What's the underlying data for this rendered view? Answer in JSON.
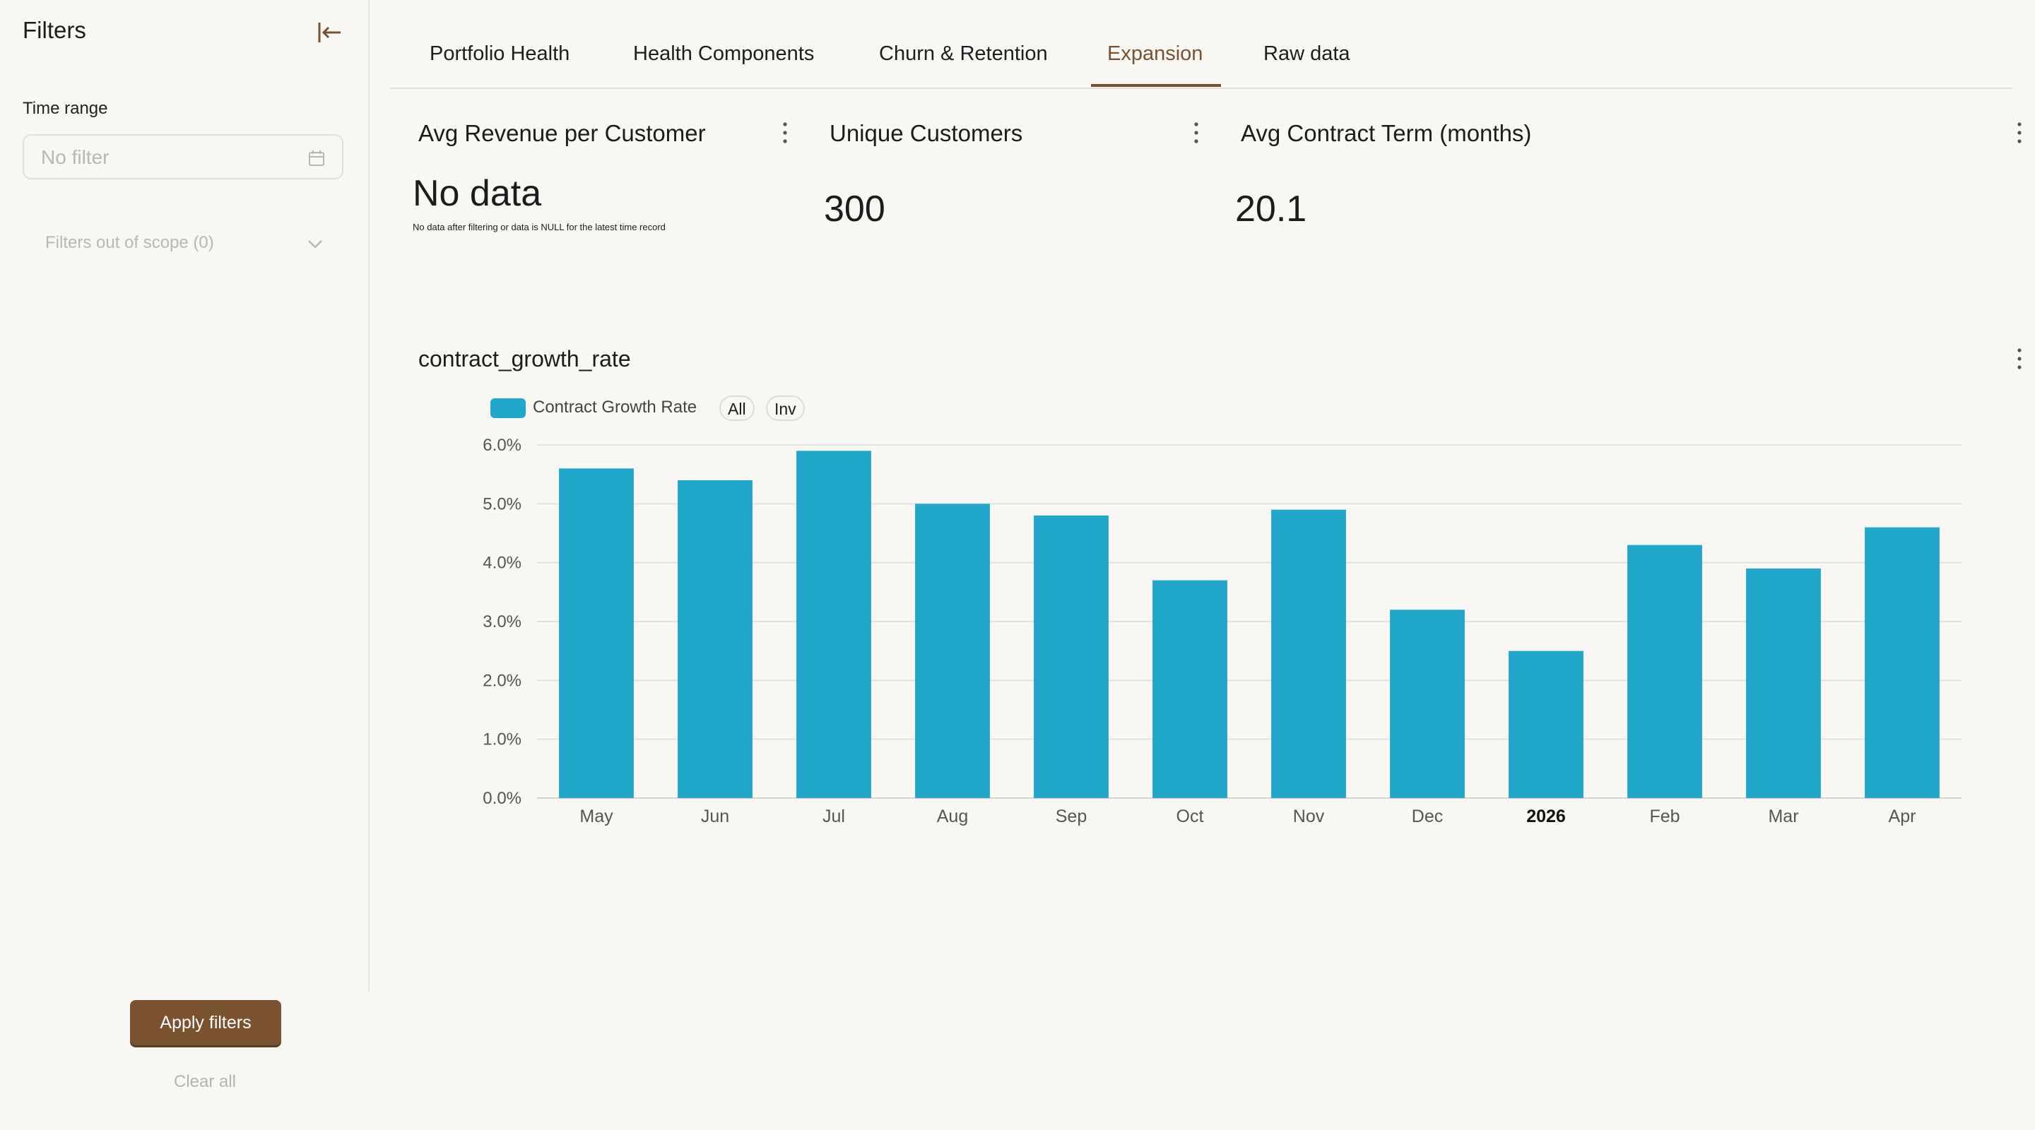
{
  "sidebar": {
    "title": "Filters",
    "time_range_label": "Time range",
    "time_range_placeholder": "No filter",
    "scope_label": "Filters out of scope (0)",
    "apply_label": "Apply filters",
    "clear_label": "Clear all"
  },
  "tabs": [
    {
      "label": "Portfolio Health",
      "active": false
    },
    {
      "label": "Health Components",
      "active": false
    },
    {
      "label": "Churn & Retention",
      "active": false
    },
    {
      "label": "Expansion",
      "active": true
    },
    {
      "label": "Raw data",
      "active": false
    }
  ],
  "kpis": [
    {
      "title": "Avg Revenue per Customer",
      "value": "No data",
      "note": "No data after filtering or data is NULL for the latest time record"
    },
    {
      "title": "Unique Customers",
      "value": "300"
    },
    {
      "title": "Avg Contract Term (months)",
      "value": "20.1"
    }
  ],
  "chart": {
    "title": "contract_growth_rate",
    "legend_label": "Contract Growth Rate",
    "legend_all": "All",
    "legend_inv": "Inv"
  },
  "colors": {
    "accent": "#7a5230",
    "bar": "#20a7cb"
  },
  "chart_data": {
    "type": "bar",
    "categories": [
      "May",
      "Jun",
      "Jul",
      "Aug",
      "Sep",
      "Oct",
      "Nov",
      "Dec",
      "2026",
      "Feb",
      "Mar",
      "Apr"
    ],
    "series": [
      {
        "name": "Contract Growth Rate",
        "values": [
          5.6,
          5.4,
          5.9,
          5.0,
          4.8,
          3.7,
          4.9,
          3.2,
          2.5,
          4.3,
          3.9,
          4.6
        ]
      }
    ],
    "y_ticks": [
      "0.0%",
      "1.0%",
      "2.0%",
      "3.0%",
      "4.0%",
      "5.0%",
      "6.0%"
    ],
    "ylim": [
      0,
      6
    ],
    "bold_categories": [
      "2026"
    ],
    "grid": true,
    "legend": "top-left"
  }
}
